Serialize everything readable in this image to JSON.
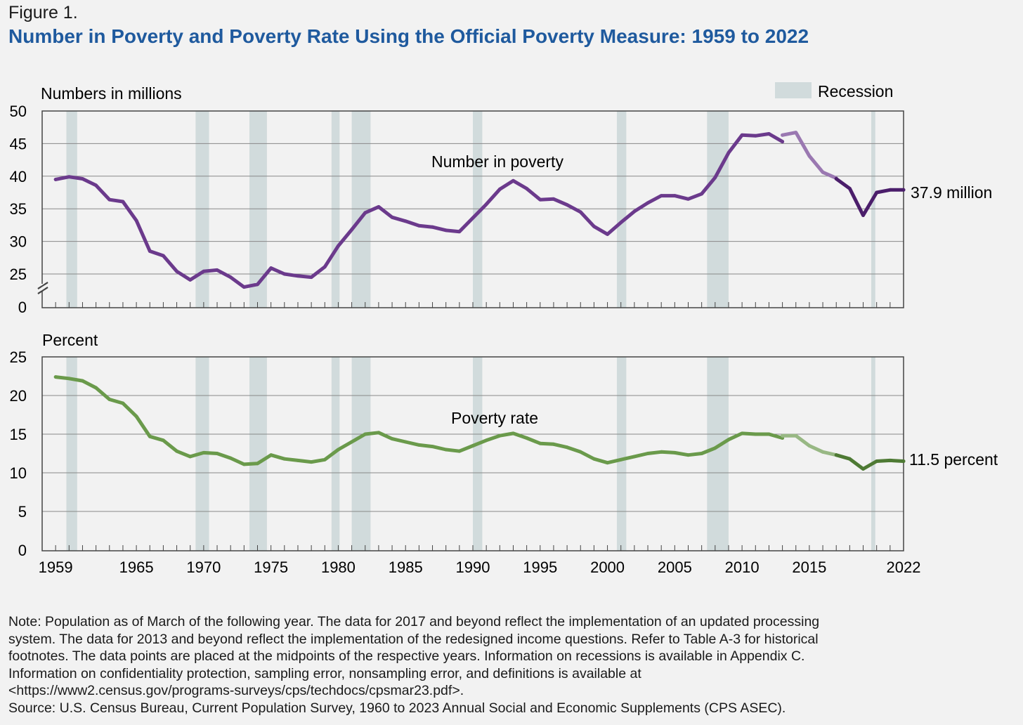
{
  "figure_label": "Figure 1.",
  "title": "Number in Poverty and Poverty Rate Using the Official Poverty Measure: 1959 to 2022",
  "notes": [
    "Note: Population as of March of the following year. The data for 2017 and beyond reflect the implementation of an updated processing",
    "system. The data for 2013 and beyond reflect the implementation of the redesigned income questions. Refer to Table A-3 for historical",
    "footnotes. The data points are placed at the midpoints of the respective years. Information on recessions is available in Appendix C.",
    "Information on confidentiality protection, sampling error, nonsampling error, and definitions is available at",
    "<https://www2.census.gov/programs-surveys/cps/techdocs/cpsmar23.pdf>.",
    "Source: U.S. Census Bureau, Current Population Survey, 1960 to 2023 Annual Social and Economic Supplements (CPS ASEC)."
  ],
  "colors": {
    "title": "#1f5a9e",
    "recession": "#d1dbdc",
    "number_line": "#6b3a8c",
    "number_line_light": "#9a78b1",
    "number_line_dark": "#4b1e6b",
    "rate_line": "#6a9a4b",
    "rate_line_light": "#98b884",
    "rate_line_dark": "#4e7a34",
    "grid": "#888888"
  },
  "chart_data": [
    {
      "type": "line",
      "ylabel": "Numbers in millions",
      "ylim": [
        0,
        50
      ],
      "yticks": [
        "50",
        "45",
        "40",
        "35",
        "30",
        "25",
        "0"
      ],
      "axis_break": "between 0 and 25",
      "grid": true,
      "legend": {
        "label": "Recession",
        "placement": "top-right"
      },
      "series": [
        {
          "name": "Number in poverty",
          "end_label": "37.9 million",
          "x": [
            1959,
            1960,
            1961,
            1962,
            1963,
            1964,
            1965,
            1966,
            1967,
            1968,
            1969,
            1970,
            1971,
            1972,
            1973,
            1974,
            1975,
            1976,
            1977,
            1978,
            1979,
            1980,
            1981,
            1982,
            1983,
            1984,
            1985,
            1986,
            1987,
            1988,
            1989,
            1990,
            1991,
            1992,
            1993,
            1994,
            1995,
            1996,
            1997,
            1998,
            1999,
            2000,
            2001,
            2002,
            2003,
            2004,
            2005,
            2006,
            2007,
            2008,
            2009,
            2010,
            2011,
            2012,
            2013,
            2013,
            2014,
            2015,
            2016,
            2017,
            2017,
            2018,
            2019,
            2020,
            2021,
            2022
          ],
          "values": [
            39.5,
            39.9,
            39.6,
            38.6,
            36.4,
            36.1,
            33.2,
            28.5,
            27.8,
            25.4,
            24.1,
            25.4,
            25.6,
            24.5,
            23.0,
            23.4,
            25.9,
            25.0,
            24.7,
            24.5,
            26.1,
            29.3,
            31.8,
            34.4,
            35.3,
            33.7,
            33.1,
            32.4,
            32.2,
            31.7,
            31.5,
            33.6,
            35.7,
            38.0,
            39.3,
            38.1,
            36.4,
            36.5,
            35.6,
            34.5,
            32.3,
            31.1,
            32.9,
            34.6,
            35.9,
            37.0,
            37.0,
            36.5,
            37.3,
            39.8,
            43.6,
            46.3,
            46.2,
            46.5,
            45.3,
            46.3,
            46.7,
            43.1,
            40.6,
            39.7,
            39.6,
            38.1,
            34.0,
            37.5,
            37.9,
            37.9
          ]
        }
      ]
    },
    {
      "type": "line",
      "ylabel": "Percent",
      "ylim": [
        0,
        25
      ],
      "yticks": [
        "25",
        "20",
        "15",
        "10",
        "5",
        "0"
      ],
      "grid": true,
      "xticks": [
        "1959",
        "1965",
        "1970",
        "1975",
        "1980",
        "1985",
        "1990",
        "1995",
        "2000",
        "2005",
        "2010",
        "2015",
        "2022"
      ],
      "series": [
        {
          "name": "Poverty rate",
          "end_label": "11.5 percent",
          "x": [
            1959,
            1960,
            1961,
            1962,
            1963,
            1964,
            1965,
            1966,
            1967,
            1968,
            1969,
            1970,
            1971,
            1972,
            1973,
            1974,
            1975,
            1976,
            1977,
            1978,
            1979,
            1980,
            1981,
            1982,
            1983,
            1984,
            1985,
            1986,
            1987,
            1988,
            1989,
            1990,
            1991,
            1992,
            1993,
            1994,
            1995,
            1996,
            1997,
            1998,
            1999,
            2000,
            2001,
            2002,
            2003,
            2004,
            2005,
            2006,
            2007,
            2008,
            2009,
            2010,
            2011,
            2012,
            2013,
            2013,
            2014,
            2015,
            2016,
            2017,
            2017,
            2018,
            2019,
            2020,
            2021,
            2022
          ],
          "values": [
            22.4,
            22.2,
            21.9,
            21.0,
            19.5,
            19.0,
            17.3,
            14.7,
            14.2,
            12.8,
            12.1,
            12.6,
            12.5,
            11.9,
            11.1,
            11.2,
            12.3,
            11.8,
            11.6,
            11.4,
            11.7,
            13.0,
            14.0,
            15.0,
            15.2,
            14.4,
            14.0,
            13.6,
            13.4,
            13.0,
            12.8,
            13.5,
            14.2,
            14.8,
            15.1,
            14.5,
            13.8,
            13.7,
            13.3,
            12.7,
            11.8,
            11.3,
            11.7,
            12.1,
            12.5,
            12.7,
            12.6,
            12.3,
            12.5,
            13.2,
            14.3,
            15.1,
            15.0,
            15.0,
            14.5,
            14.8,
            14.8,
            13.5,
            12.7,
            12.3,
            12.3,
            11.8,
            10.5,
            11.5,
            11.6,
            11.5
          ]
        }
      ]
    }
  ],
  "recessions": [
    [
      1960.3,
      1961.1
    ],
    [
      1969.9,
      1970.9
    ],
    [
      1973.9,
      1975.2
    ],
    [
      1980.0,
      1980.6
    ],
    [
      1981.5,
      1982.9
    ],
    [
      1990.5,
      1991.2
    ],
    [
      2001.2,
      2001.9
    ],
    [
      2007.9,
      2009.5
    ],
    [
      2020.1,
      2020.4
    ]
  ]
}
